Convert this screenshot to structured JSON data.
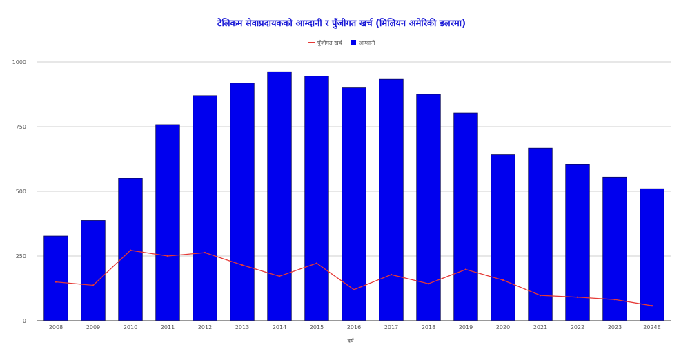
{
  "chart_data": {
    "type": "bar",
    "title": "टेलिकम सेवाप्रदायकको आम्दानी र पुँजीगत खर्च (मिलियन अमेरिकी डलरमा)",
    "xlabel": "वर्ष",
    "ylabel": "",
    "categories": [
      "2008",
      "2009",
      "2010",
      "2011",
      "2012",
      "2013",
      "2014",
      "2015",
      "2016",
      "2017",
      "2018",
      "2019",
      "2020",
      "2021",
      "2022",
      "2023",
      "2024E"
    ],
    "ylim": [
      0,
      1000
    ],
    "yticks": [
      0,
      250,
      500,
      750,
      1000
    ],
    "ytick_labels": [
      "0",
      "250",
      "500",
      "750",
      "1000"
    ],
    "grid": true,
    "legend_position": "top-center",
    "series": [
      {
        "name": "पुँजीगत खर्च",
        "kind": "line",
        "color": "#e53935",
        "values": [
          150,
          137,
          272,
          250,
          263,
          215,
          172,
          222,
          120,
          178,
          143,
          198,
          157,
          98,
          91,
          82,
          58
        ]
      },
      {
        "name": "आम्दानी",
        "kind": "bar",
        "color": "#0000ee",
        "values": [
          327,
          387,
          550,
          758,
          870,
          918,
          962,
          945,
          900,
          933,
          875,
          803,
          642,
          667,
          603,
          555,
          510
        ]
      }
    ]
  }
}
